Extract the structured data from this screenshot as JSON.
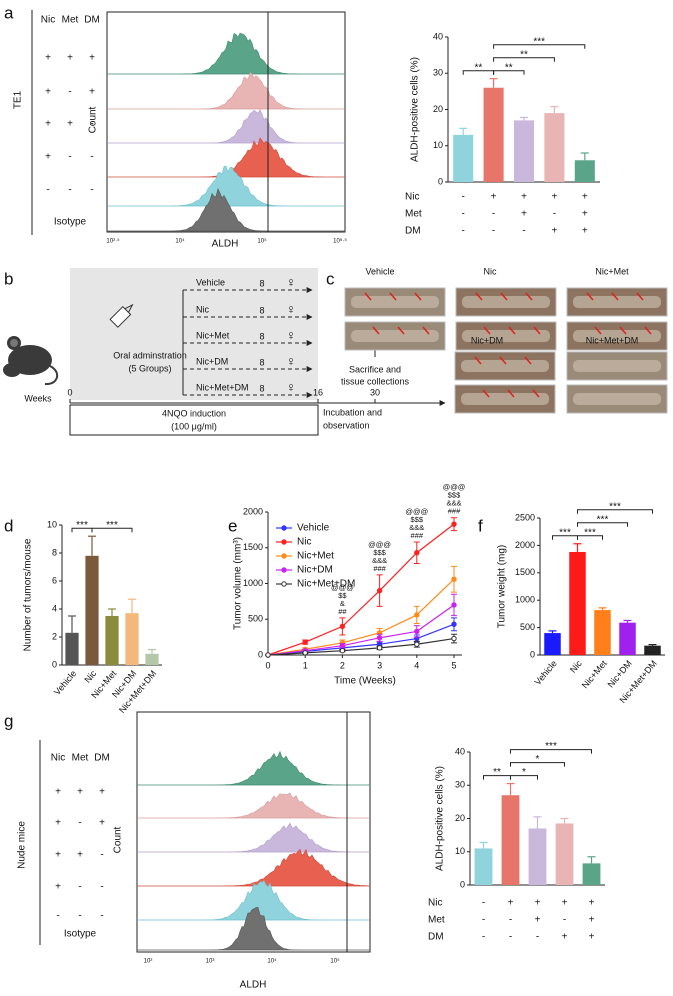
{
  "panel_labels": [
    "a",
    "b",
    "c",
    "d",
    "e",
    "f",
    "g"
  ],
  "flow_a": {
    "col_headers": [
      "Nic",
      "Met",
      "DM"
    ],
    "group_label": "TE1",
    "rows": [
      [
        "+",
        "+",
        "+"
      ],
      [
        "+",
        "-",
        "+"
      ],
      [
        "+",
        "+",
        "-"
      ],
      [
        "+",
        "-",
        "-"
      ],
      [
        "-",
        "-",
        "-"
      ]
    ],
    "isotype": "Isotype",
    "y_label": "Count",
    "x_label": "ALDH",
    "x_ticks": [
      "10²·⁵",
      "10⁴",
      "10⁵",
      "10⁶·⁵"
    ]
  },
  "diagram_b": {
    "groups": [
      {
        "name": "Vehicle",
        "n": 8,
        "sex": "♀"
      },
      {
        "name": "Nic",
        "n": 8,
        "sex": "♀"
      },
      {
        "name": "Nic+Met",
        "n": 8,
        "sex": "♀"
      },
      {
        "name": "Nic+DM",
        "n": 8,
        "sex": "♀"
      },
      {
        "name": "Nic+Met+DM",
        "n": 8,
        "sex": "♀"
      }
    ],
    "admin": [
      "Oral adminstration",
      "(5 Groups)"
    ],
    "timeline": {
      "label": "Weeks",
      "ticks": [
        0,
        16,
        30
      ],
      "phase1": [
        "4NQO induction",
        "(100 μg/ml)"
      ],
      "phase2": [
        "Incubation and",
        "observation"
      ],
      "endpoint": [
        "Sacrifice and",
        "tissue collections"
      ]
    }
  },
  "photos_c": {
    "labels": [
      "Vehicle",
      "Nic",
      "Nic+Met",
      "Nic+DM",
      "Nic+Met+DM"
    ]
  },
  "flow_g": {
    "col_headers": [
      "Nic",
      "Met",
      "DM"
    ],
    "group_label": "Nude mice",
    "rows": [
      [
        "+",
        "+",
        "+"
      ],
      [
        "+",
        "-",
        "+"
      ],
      [
        "+",
        "+",
        "-"
      ],
      [
        "+",
        "-",
        "-"
      ],
      [
        "-",
        "-",
        "-"
      ]
    ],
    "isotype": "Isotype",
    "y_label": "Count",
    "x_label": "ALDH",
    "x_ticks": [
      "10²",
      "10³",
      "10⁴",
      "10⁵"
    ]
  },
  "chart_data": [
    {
      "type": "bar",
      "y_label": "ALDH-positive cells (%)",
      "values": [
        13,
        26,
        17,
        19,
        6
      ],
      "errors": [
        1.8,
        2.5,
        0.8,
        1.8,
        2
      ],
      "colors": [
        "#8fd3dc",
        "#e8756a",
        "#c9b8dc",
        "#e8b4b4",
        "#5aa58a"
      ],
      "ylim": [
        0,
        40
      ],
      "yticks": [
        0,
        10,
        20,
        30,
        40
      ],
      "conditions": [
        {
          "name": "Nic",
          "signs": [
            "-",
            "+",
            "+",
            "+",
            "+"
          ]
        },
        {
          "name": "Met",
          "signs": [
            "-",
            "-",
            "+",
            "-",
            "+"
          ]
        },
        {
          "name": "DM",
          "signs": [
            "-",
            "-",
            "-",
            "+",
            "+"
          ]
        }
      ],
      "significance": [
        {
          "pair": [
            0,
            1
          ],
          "label": "**"
        },
        {
          "pair": [
            1,
            2
          ],
          "label": "**"
        },
        {
          "pair": [
            1,
            3
          ],
          "label": "**"
        },
        {
          "pair": [
            1,
            4
          ],
          "label": "***"
        }
      ]
    },
    {
      "type": "bar",
      "y_label": "Number of tumors/mouse",
      "categories": [
        "Vehicle",
        "Nic",
        "Nic+Met",
        "Nic+DM",
        "Nic+Met+DM"
      ],
      "values": [
        2.3,
        7.8,
        3.5,
        3.7,
        0.8
      ],
      "errors": [
        1.2,
        1.4,
        0.5,
        1.0,
        0.3
      ],
      "colors": [
        "#555555",
        "#7b5a3c",
        "#8a8a3a",
        "#f4b97a",
        "#b4c8a8"
      ],
      "ylim": [
        0,
        10
      ],
      "yticks": [
        0,
        2,
        4,
        6,
        8,
        10
      ],
      "significance": [
        {
          "pair": [
            0,
            1
          ],
          "label": "***"
        },
        {
          "pair": [
            1,
            3
          ],
          "label": "***"
        }
      ]
    },
    {
      "type": "line",
      "x_label": "Time (Weeks)",
      "y_label": "Tumor volume (mm³)",
      "x": [
        0,
        1,
        2,
        3,
        4,
        5
      ],
      "xlim": [
        0,
        5
      ],
      "xticks": [
        0,
        1,
        2,
        3,
        4,
        5
      ],
      "ylim": [
        0,
        2000
      ],
      "yticks": [
        0,
        500,
        1000,
        1500,
        2000
      ],
      "series": [
        {
          "name": "Vehicle",
          "color": "#3333ff",
          "values": [
            0,
            50,
            100,
            150,
            230,
            430
          ],
          "errors": [
            0,
            10,
            20,
            30,
            50,
            90
          ]
        },
        {
          "name": "Nic",
          "color": "#ff2020",
          "values": [
            0,
            180,
            400,
            900,
            1430,
            1830
          ],
          "errors": [
            0,
            30,
            120,
            220,
            150,
            90
          ]
        },
        {
          "name": "Nic+Met",
          "color": "#ff8c1a",
          "values": [
            0,
            80,
            170,
            310,
            560,
            1060
          ],
          "errors": [
            0,
            20,
            40,
            60,
            120,
            180
          ]
        },
        {
          "name": "Nic+DM",
          "color": "#cc22ee",
          "values": [
            0,
            60,
            130,
            240,
            330,
            700
          ],
          "errors": [
            0,
            15,
            30,
            50,
            80,
            150
          ]
        },
        {
          "name": "Nic+Met+DM",
          "color": "#333333",
          "values": [
            0,
            30,
            60,
            100,
            150,
            230
          ],
          "errors": [
            0,
            10,
            15,
            25,
            40,
            60
          ]
        }
      ],
      "annotations": [
        {
          "x": 2,
          "lines": [
            "@@@",
            "$$",
            "&",
            "##"
          ]
        },
        {
          "x": 3,
          "lines": [
            "@@@",
            "$$$",
            "&&&",
            "###"
          ]
        },
        {
          "x": 4,
          "lines": [
            "@@@",
            "$$$",
            "&&&",
            "###"
          ]
        },
        {
          "x": 5,
          "lines": [
            "@@@",
            "$$$",
            "&&&",
            "###"
          ]
        }
      ],
      "legend": "top-left"
    },
    {
      "type": "bar",
      "y_label": "Tumor weight (mg)",
      "categories": [
        "Vehicle",
        "Nic",
        "Nic+Met",
        "Nic+DM",
        "Nic+Met+DM"
      ],
      "values": [
        400,
        1880,
        820,
        590,
        170
      ],
      "errors": [
        40,
        150,
        40,
        40,
        20
      ],
      "colors": [
        "#1a1aff",
        "#ff1a1a",
        "#ff7f1a",
        "#a020f0",
        "#222222"
      ],
      "ylim": [
        0,
        2500
      ],
      "yticks": [
        0,
        500,
        1000,
        1500,
        2000,
        2500
      ],
      "significance": [
        {
          "pair": [
            0,
            1
          ],
          "label": "***"
        },
        {
          "pair": [
            1,
            2
          ],
          "label": "***"
        },
        {
          "pair": [
            1,
            3
          ],
          "label": "***"
        },
        {
          "pair": [
            1,
            4
          ],
          "label": "***"
        }
      ]
    },
    {
      "type": "bar",
      "y_label": "ALDH-positive cells (%)",
      "values": [
        11,
        27,
        17,
        18.5,
        6.5
      ],
      "errors": [
        1.8,
        3.5,
        3.5,
        1.5,
        2
      ],
      "colors": [
        "#8fd3dc",
        "#e8756a",
        "#c9b8dc",
        "#e8b4b4",
        "#5aa58a"
      ],
      "ylim": [
        0,
        40
      ],
      "yticks": [
        0,
        10,
        20,
        30,
        40
      ],
      "conditions": [
        {
          "name": "Nic",
          "signs": [
            "-",
            "+",
            "+",
            "+",
            "+"
          ]
        },
        {
          "name": "Met",
          "signs": [
            "-",
            "-",
            "+",
            "-",
            "+"
          ]
        },
        {
          "name": "DM",
          "signs": [
            "-",
            "-",
            "-",
            "+",
            "+"
          ]
        }
      ],
      "significance": [
        {
          "pair": [
            0,
            1
          ],
          "label": "**"
        },
        {
          "pair": [
            1,
            2
          ],
          "label": "*"
        },
        {
          "pair": [
            1,
            3
          ],
          "label": "*"
        },
        {
          "pair": [
            1,
            4
          ],
          "label": "***"
        }
      ]
    }
  ]
}
